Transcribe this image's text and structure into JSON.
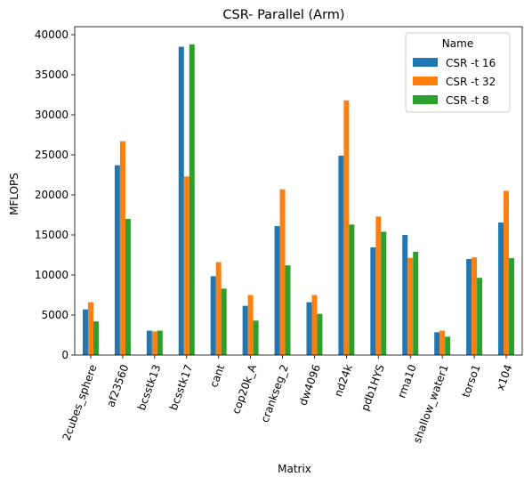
{
  "chart_data": {
    "type": "bar",
    "title": "CSR- Parallel (Arm)",
    "xlabel": "Matrix",
    "ylabel": "MFLOPS",
    "ylim": [
      0,
      41000
    ],
    "yticks": [
      0,
      5000,
      10000,
      15000,
      20000,
      25000,
      30000,
      35000,
      40000
    ],
    "categories": [
      "2cubes_sphere",
      "af23560",
      "bcsstk13",
      "bcsstk17",
      "cant",
      "cop20k_A",
      "crankseg_2",
      "dw4096",
      "nd24k",
      "pdb1HYS",
      "rma10",
      "shallow_water1",
      "torso1",
      "x104"
    ],
    "legend": {
      "title": "Name",
      "placement": "top-right"
    },
    "grid": false,
    "series": [
      {
        "name": "CSR -t 16",
        "color": "#1f77b4",
        "values": [
          5700,
          23700,
          3050,
          38500,
          9850,
          6150,
          16100,
          6600,
          24900,
          13450,
          15000,
          2850,
          12000,
          16550
        ]
      },
      {
        "name": "CSR -t 32",
        "color": "#ff7f0e",
        "values": [
          6600,
          26700,
          2950,
          22300,
          11600,
          7500,
          20700,
          7500,
          31800,
          17300,
          12150,
          3050,
          12200,
          20500
        ]
      },
      {
        "name": "CSR -t 8",
        "color": "#2ca02c",
        "values": [
          4200,
          17000,
          3050,
          38800,
          8300,
          4300,
          11200,
          5150,
          16300,
          15400,
          12900,
          2300,
          9650,
          12100
        ]
      }
    ]
  }
}
